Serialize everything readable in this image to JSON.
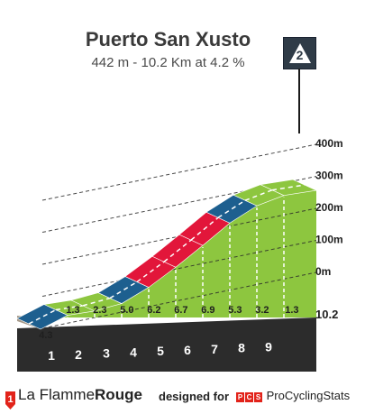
{
  "header": {
    "title": "Puerto San Xusto",
    "subtitle": "442 m - 10.2 Km at 4.2 %"
  },
  "category_badge": {
    "number": "2",
    "icon": "mountain-category-icon"
  },
  "footer": {
    "brand_left_prefix": "La Flamme",
    "brand_left_suffix": "Rouge",
    "designed_for": "designed for",
    "pcs_letters": [
      "P",
      "C",
      "S"
    ],
    "brand_right": "ProCyclingStats"
  },
  "colors": {
    "green": "#8dc63f",
    "blue": "#1d5f8f",
    "red": "#e2163a",
    "base": "#2c2c2c",
    "tan": "#a69a8a"
  },
  "chart_data": {
    "type": "area",
    "title": "Puerto San Xusto",
    "subtitle": "442 m - 10.2 Km at 4.2 %",
    "x_unit": "km",
    "distance_total_label": "10.2",
    "km_ticks": [
      "1",
      "2",
      "3",
      "4",
      "5",
      "6",
      "7",
      "8",
      "9"
    ],
    "elevation_ticks": [
      "0m",
      "100m",
      "200m",
      "300m",
      "400m"
    ],
    "elevation_tick_values": [
      0,
      100,
      200,
      300,
      400
    ],
    "segments": [
      {
        "km_start": 0,
        "km_end": 1,
        "gradient": 4.3,
        "label": "4.3",
        "color": "blue"
      },
      {
        "km_start": 1,
        "km_end": 2,
        "gradient": 1.3,
        "label": "1.3",
        "color": "green"
      },
      {
        "km_start": 2,
        "km_end": 3,
        "gradient": 2.3,
        "label": "2.3",
        "color": "green"
      },
      {
        "km_start": 3,
        "km_end": 4,
        "gradient": 5.0,
        "label": "5.0",
        "color": "blue"
      },
      {
        "km_start": 4,
        "km_end": 5,
        "gradient": 6.2,
        "label": "6.2",
        "color": "red"
      },
      {
        "km_start": 5,
        "km_end": 6,
        "gradient": 6.7,
        "label": "6.7",
        "color": "red"
      },
      {
        "km_start": 6,
        "km_end": 7,
        "gradient": 6.9,
        "label": "6.9",
        "color": "red"
      },
      {
        "km_start": 7,
        "km_end": 8,
        "gradient": 5.3,
        "label": "5.3",
        "color": "blue"
      },
      {
        "km_start": 8,
        "km_end": 9,
        "gradient": 3.2,
        "label": "3.2",
        "color": "green"
      },
      {
        "km_start": 9,
        "km_end": 10.2,
        "gradient": 1.3,
        "label": "1.3",
        "color": "green"
      }
    ],
    "grid": true
  }
}
